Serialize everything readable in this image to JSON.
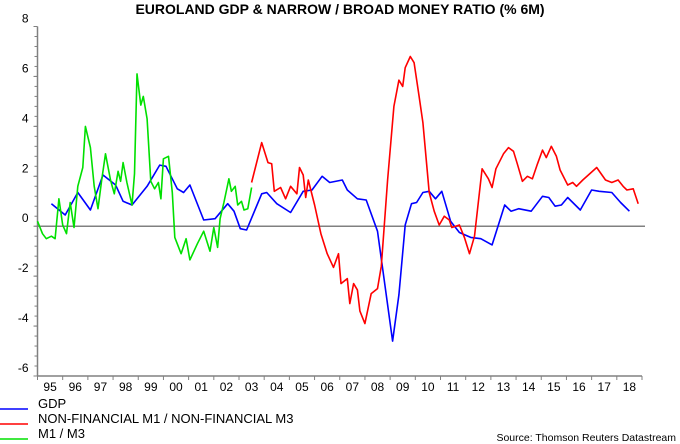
{
  "chart_data": {
    "type": "line",
    "title": "EUROLAND GDP & NARROW / BROAD MONEY RATIO (% 6M)",
    "xlabel": "",
    "ylabel": "",
    "ylim": [
      -6,
      8
    ],
    "xlim": [
      1995,
      2019
    ],
    "yticks": [
      "8",
      "6",
      "4",
      "2",
      "0",
      "-2",
      "-4",
      "-6"
    ],
    "ytick_values": [
      8,
      6,
      4,
      2,
      0,
      -2,
      -4,
      -6
    ],
    "xticks": [
      "95",
      "96",
      "97",
      "98",
      "99",
      "00",
      "01",
      "02",
      "03",
      "04",
      "05",
      "06",
      "07",
      "08",
      "09",
      "10",
      "11",
      "12",
      "13",
      "14",
      "15",
      "16",
      "17",
      "18"
    ],
    "zero_line": true,
    "legend_position": "bottom-left",
    "source": "Source: Thomson Reuters Datastream",
    "series": [
      {
        "name": "GDP",
        "color": "#0000ff",
        "points": [
          [
            1995.55,
            0.9
          ],
          [
            1996.1,
            0.45
          ],
          [
            1996.6,
            1.35
          ],
          [
            1997.1,
            0.65
          ],
          [
            1997.6,
            2.05
          ],
          [
            1998.1,
            1.65
          ],
          [
            1998.4,
            1.0
          ],
          [
            1998.75,
            0.85
          ],
          [
            1999.35,
            1.6
          ],
          [
            1999.85,
            2.45
          ],
          [
            2000.1,
            2.4
          ],
          [
            2000.55,
            1.5
          ],
          [
            2000.8,
            1.35
          ],
          [
            2001.05,
            1.65
          ],
          [
            2001.6,
            0.25
          ],
          [
            2002.05,
            0.3
          ],
          [
            2002.55,
            0.9
          ],
          [
            2002.8,
            0.6
          ],
          [
            2003.05,
            -0.1
          ],
          [
            2003.3,
            -0.15
          ],
          [
            2003.9,
            1.3
          ],
          [
            2004.1,
            1.35
          ],
          [
            2004.5,
            0.9
          ],
          [
            2005.05,
            0.55
          ],
          [
            2005.55,
            1.4
          ],
          [
            2005.9,
            1.45
          ],
          [
            2006.3,
            2.0
          ],
          [
            2006.6,
            1.75
          ],
          [
            2007.1,
            1.85
          ],
          [
            2007.3,
            1.45
          ],
          [
            2007.7,
            1.1
          ],
          [
            2008.05,
            1.05
          ],
          [
            2008.5,
            -0.2
          ],
          [
            2009.1,
            -4.6
          ],
          [
            2009.35,
            -2.75
          ],
          [
            2009.6,
            0.05
          ],
          [
            2009.85,
            0.9
          ],
          [
            2010.05,
            0.95
          ],
          [
            2010.3,
            1.35
          ],
          [
            2010.55,
            1.4
          ],
          [
            2010.8,
            1.1
          ],
          [
            2011.05,
            1.4
          ],
          [
            2011.4,
            0.2
          ],
          [
            2011.75,
            -0.25
          ],
          [
            2012.2,
            -0.45
          ],
          [
            2012.6,
            -0.5
          ],
          [
            2013.05,
            -0.75
          ],
          [
            2013.55,
            0.85
          ],
          [
            2013.8,
            0.6
          ],
          [
            2014.1,
            0.7
          ],
          [
            2014.6,
            0.6
          ],
          [
            2015.05,
            1.2
          ],
          [
            2015.3,
            1.15
          ],
          [
            2015.55,
            0.8
          ],
          [
            2015.8,
            0.85
          ],
          [
            2016.05,
            1.15
          ],
          [
            2016.55,
            0.65
          ],
          [
            2017.0,
            1.45
          ],
          [
            2017.3,
            1.4
          ],
          [
            2017.8,
            1.35
          ],
          [
            2018.15,
            0.95
          ],
          [
            2018.5,
            0.6
          ]
        ]
      },
      {
        "name": "NON-FINANCIAL M1 / NON-FINANCIAL M3",
        "color": "#ff0000",
        "points": [
          [
            2003.5,
            1.75
          ],
          [
            2003.65,
            2.35
          ],
          [
            2003.9,
            3.35
          ],
          [
            2004.15,
            2.55
          ],
          [
            2004.3,
            2.5
          ],
          [
            2004.4,
            1.4
          ],
          [
            2004.65,
            1.55
          ],
          [
            2004.85,
            1.1
          ],
          [
            2005.05,
            1.6
          ],
          [
            2005.3,
            1.3
          ],
          [
            2005.4,
            2.35
          ],
          [
            2005.55,
            2.05
          ],
          [
            2005.65,
            1.15
          ],
          [
            2005.75,
            1.85
          ],
          [
            2006.0,
            0.85
          ],
          [
            2006.25,
            -0.3
          ],
          [
            2006.5,
            -1.1
          ],
          [
            2006.75,
            -1.65
          ],
          [
            2006.95,
            -1.1
          ],
          [
            2007.05,
            -2.3
          ],
          [
            2007.3,
            -2.1
          ],
          [
            2007.4,
            -3.1
          ],
          [
            2007.55,
            -2.3
          ],
          [
            2007.7,
            -2.55
          ],
          [
            2007.8,
            -3.4
          ],
          [
            2008.0,
            -3.9
          ],
          [
            2008.25,
            -2.7
          ],
          [
            2008.5,
            -2.5
          ],
          [
            2008.65,
            -1.6
          ],
          [
            2008.9,
            1.85
          ],
          [
            2009.15,
            4.8
          ],
          [
            2009.35,
            5.85
          ],
          [
            2009.5,
            5.6
          ],
          [
            2009.6,
            6.35
          ],
          [
            2009.8,
            6.8
          ],
          [
            2009.95,
            6.55
          ],
          [
            2010.15,
            5.2
          ],
          [
            2010.3,
            4.15
          ],
          [
            2010.55,
            1.35
          ],
          [
            2010.75,
            0.6
          ],
          [
            2010.95,
            0.05
          ],
          [
            2011.15,
            0.4
          ],
          [
            2011.35,
            0.25
          ],
          [
            2011.45,
            -0.05
          ],
          [
            2011.75,
            0.05
          ],
          [
            2011.95,
            -0.45
          ],
          [
            2012.15,
            -1.1
          ],
          [
            2012.35,
            -0.4
          ],
          [
            2012.65,
            2.3
          ],
          [
            2012.9,
            1.9
          ],
          [
            2013.05,
            1.55
          ],
          [
            2013.2,
            2.3
          ],
          [
            2013.5,
            2.9
          ],
          [
            2013.7,
            3.15
          ],
          [
            2013.9,
            3.0
          ],
          [
            2014.05,
            2.5
          ],
          [
            2014.25,
            1.8
          ],
          [
            2014.45,
            2.0
          ],
          [
            2014.65,
            1.9
          ],
          [
            2014.85,
            2.5
          ],
          [
            2015.05,
            3.05
          ],
          [
            2015.2,
            2.75
          ],
          [
            2015.4,
            3.2
          ],
          [
            2015.6,
            2.8
          ],
          [
            2015.75,
            2.25
          ],
          [
            2016.05,
            1.65
          ],
          [
            2016.25,
            1.75
          ],
          [
            2016.4,
            1.6
          ],
          [
            2016.65,
            1.85
          ],
          [
            2017.2,
            2.35
          ],
          [
            2017.55,
            1.85
          ],
          [
            2017.8,
            1.75
          ],
          [
            2018.05,
            1.85
          ],
          [
            2018.25,
            1.6
          ],
          [
            2018.4,
            1.45
          ],
          [
            2018.65,
            1.5
          ],
          [
            2018.85,
            0.9
          ]
        ]
      },
      {
        "name": "M1 / M3",
        "color": "#00e000",
        "points": [
          [
            1995.0,
            0.2
          ],
          [
            1995.2,
            -0.3
          ],
          [
            1995.35,
            -0.5
          ],
          [
            1995.55,
            -0.4
          ],
          [
            1995.7,
            -0.5
          ],
          [
            1995.85,
            1.1
          ],
          [
            1996.0,
            0.05
          ],
          [
            1996.15,
            -0.3
          ],
          [
            1996.3,
            0.95
          ],
          [
            1996.45,
            -0.05
          ],
          [
            1996.6,
            1.6
          ],
          [
            1996.8,
            2.35
          ],
          [
            1996.9,
            4.0
          ],
          [
            1997.1,
            3.15
          ],
          [
            1997.25,
            1.6
          ],
          [
            1997.4,
            0.7
          ],
          [
            1997.55,
            1.85
          ],
          [
            1997.7,
            2.9
          ],
          [
            1997.9,
            1.85
          ],
          [
            1998.05,
            1.3
          ],
          [
            1998.2,
            2.2
          ],
          [
            1998.3,
            1.8
          ],
          [
            1998.4,
            2.55
          ],
          [
            1998.55,
            1.75
          ],
          [
            1998.75,
            0.85
          ],
          [
            1998.85,
            2.1
          ],
          [
            1998.95,
            6.1
          ],
          [
            1999.1,
            4.85
          ],
          [
            1999.2,
            5.2
          ],
          [
            1999.35,
            4.3
          ],
          [
            1999.5,
            1.8
          ],
          [
            1999.65,
            1.5
          ],
          [
            1999.8,
            1.75
          ],
          [
            1999.9,
            1.1
          ],
          [
            2000.0,
            2.7
          ],
          [
            2000.2,
            2.8
          ],
          [
            2000.35,
            1.35
          ],
          [
            2000.45,
            -0.45
          ],
          [
            2000.7,
            -1.1
          ],
          [
            2000.9,
            -0.5
          ],
          [
            2001.05,
            -1.35
          ],
          [
            2001.35,
            -0.7
          ],
          [
            2001.6,
            -0.2
          ],
          [
            2001.85,
            -1.0
          ],
          [
            2002.0,
            -0.05
          ],
          [
            2002.15,
            -0.85
          ],
          [
            2002.25,
            0.3
          ],
          [
            2002.4,
            0.95
          ],
          [
            2002.6,
            1.9
          ],
          [
            2002.7,
            1.4
          ],
          [
            2002.85,
            1.6
          ],
          [
            2002.95,
            0.85
          ],
          [
            2003.1,
            1.0
          ],
          [
            2003.2,
            0.65
          ],
          [
            2003.35,
            0.7
          ],
          [
            2003.5,
            1.55
          ]
        ]
      }
    ]
  }
}
